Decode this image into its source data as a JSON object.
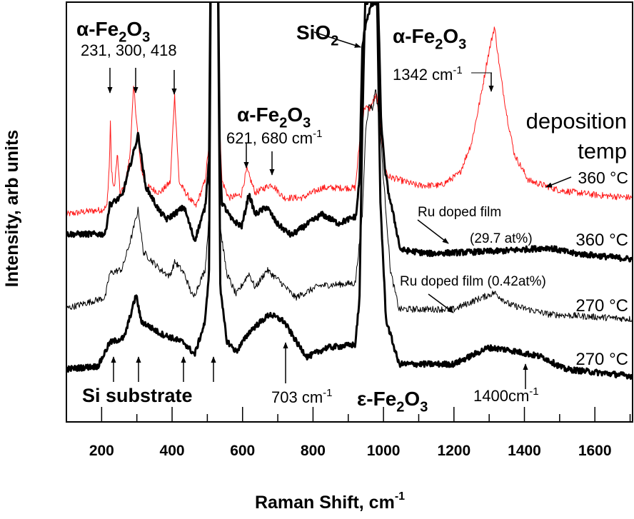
{
  "chart_data": {
    "type": "line",
    "xlabel": "Raman Shift, cm",
    "xlabel_sup": "-1",
    "ylabel": "Intensity, arb units",
    "xlim": [
      100,
      1707
    ],
    "ylim": [
      -1.9,
      99.8
    ],
    "xticks": [
      200,
      400,
      600,
      800,
      1000,
      1200,
      1400,
      1600
    ],
    "xtick_labels": [
      "200",
      "400",
      "600",
      "800",
      "1000",
      "1200",
      "1400",
      "1600"
    ],
    "minor_xticks": [
      300,
      500,
      700,
      900,
      1100,
      1300,
      1500,
      1700
    ],
    "yticks_shown": false,
    "grid": false,
    "series": [
      {
        "name": "360 °C",
        "color": "#ff1a1a",
        "style": "thin",
        "points": [
          [
            100,
            48.4
          ],
          [
            150,
            49.0
          ],
          [
            200,
            49.5
          ],
          [
            215,
            50.2
          ],
          [
            222,
            60.6
          ],
          [
            225,
            71.5
          ],
          [
            228,
            58.8
          ],
          [
            235,
            54.2
          ],
          [
            245,
            63.1
          ],
          [
            252,
            53.6
          ],
          [
            265,
            55.0
          ],
          [
            280,
            62.3
          ],
          [
            291,
            79.6
          ],
          [
            299,
            71.3
          ],
          [
            310,
            60.6
          ],
          [
            324,
            55.4
          ],
          [
            365,
            53.6
          ],
          [
            395,
            56.2
          ],
          [
            407,
            77.5
          ],
          [
            420,
            56.2
          ],
          [
            434,
            54.2
          ],
          [
            467,
            50.2
          ],
          [
            494,
            56.6
          ],
          [
            505,
            65.7
          ],
          [
            512,
            140
          ],
          [
            527,
            140
          ],
          [
            535,
            72
          ],
          [
            541,
            56.6
          ],
          [
            561,
            52.4
          ],
          [
            596,
            53.1
          ],
          [
            612,
            59.3
          ],
          [
            636,
            53.6
          ],
          [
            683,
            55.7
          ],
          [
            717,
            52.4
          ],
          [
            770,
            52.4
          ],
          [
            825,
            54.8
          ],
          [
            920,
            54.8
          ],
          [
            932,
            65.7
          ],
          [
            946,
            74.4
          ],
          [
            960,
            73.9
          ],
          [
            980,
            77.3
          ],
          [
            993,
            68.7
          ],
          [
            1003,
            60.0
          ],
          [
            1013,
            57.6
          ],
          [
            1095,
            55.4
          ],
          [
            1163,
            55.4
          ],
          [
            1216,
            58.3
          ],
          [
            1250,
            65.7
          ],
          [
            1277,
            77.3
          ],
          [
            1295,
            86.0
          ],
          [
            1315,
            93.9
          ],
          [
            1331,
            83.0
          ],
          [
            1352,
            71.5
          ],
          [
            1372,
            62.8
          ],
          [
            1412,
            56.6
          ],
          [
            1500,
            54.2
          ],
          [
            1600,
            53.1
          ],
          [
            1707,
            52.4
          ]
        ]
      },
      {
        "name": "Ru doped film (29.7 at%) 360 °C",
        "color": "#000000",
        "style": "thick",
        "points": [
          [
            100,
            43.6
          ],
          [
            210,
            43.6
          ],
          [
            223,
            50.7
          ],
          [
            258,
            52.8
          ],
          [
            304,
            67.8
          ],
          [
            324,
            55.4
          ],
          [
            365,
            49.0
          ],
          [
            385,
            47.2
          ],
          [
            434,
            50.2
          ],
          [
            464,
            42.0
          ],
          [
            494,
            50.2
          ],
          [
            505,
            62
          ],
          [
            512,
            140
          ],
          [
            527,
            140
          ],
          [
            535,
            65
          ],
          [
            541,
            51.4
          ],
          [
            568,
            47.2
          ],
          [
            598,
            45.5
          ],
          [
            618,
            53.3
          ],
          [
            636,
            48.4
          ],
          [
            669,
            50.2
          ],
          [
            697,
            46.2
          ],
          [
            738,
            43.3
          ],
          [
            825,
            48.4
          ],
          [
            872,
            46.2
          ],
          [
            922,
            47.9
          ],
          [
            932,
            57.1
          ],
          [
            940,
            88.8
          ],
          [
            950,
            95
          ],
          [
            965,
            99
          ],
          [
            985,
            100
          ],
          [
            993,
            71.5
          ],
          [
            1003,
            60
          ],
          [
            1013,
            54.2
          ],
          [
            1033,
            46.2
          ],
          [
            1048,
            39.8
          ],
          [
            1129,
            38.9
          ],
          [
            1332,
            39.5
          ],
          [
            1470,
            40.3
          ],
          [
            1534,
            39.0
          ],
          [
            1707,
            37.5
          ]
        ]
      },
      {
        "name": "Ru doped film (0.42at%) 270 °C",
        "color": "#000000",
        "style": "thin",
        "points": [
          [
            100,
            25.6
          ],
          [
            210,
            28.2
          ],
          [
            223,
            34.1
          ],
          [
            258,
            35.1
          ],
          [
            284,
            42.7
          ],
          [
            304,
            49.7
          ],
          [
            318,
            39.3
          ],
          [
            365,
            35.1
          ],
          [
            393,
            33.4
          ],
          [
            408,
            36.9
          ],
          [
            434,
            34.1
          ],
          [
            460,
            28.2
          ],
          [
            494,
            35.1
          ],
          [
            505,
            48
          ],
          [
            512,
            140
          ],
          [
            527,
            140
          ],
          [
            537,
            45
          ],
          [
            555,
            34.1
          ],
          [
            582,
            28.9
          ],
          [
            618,
            34.1
          ],
          [
            636,
            30.6
          ],
          [
            669,
            34.9
          ],
          [
            703,
            32.4
          ],
          [
            750,
            28.2
          ],
          [
            818,
            31.1
          ],
          [
            920,
            31.7
          ],
          [
            940,
            48.4
          ],
          [
            950,
            70
          ],
          [
            960,
            75
          ],
          [
            970,
            74
          ],
          [
            977,
            79.1
          ],
          [
            990,
            70
          ],
          [
            1000,
            57
          ],
          [
            1020,
            34.6
          ],
          [
            1044,
            25.4
          ],
          [
            1200,
            25.4
          ],
          [
            1264,
            27.7
          ],
          [
            1315,
            29.4
          ],
          [
            1358,
            26.5
          ],
          [
            1467,
            24.2
          ],
          [
            1707,
            23.0
          ]
        ]
      },
      {
        "name": "270 °C",
        "color": "#000000",
        "style": "thick",
        "points": [
          [
            100,
            10.9
          ],
          [
            190,
            11.6
          ],
          [
            223,
            17.3
          ],
          [
            264,
            18.5
          ],
          [
            298,
            28.9
          ],
          [
            312,
            22.5
          ],
          [
            365,
            19.6
          ],
          [
            434,
            17.3
          ],
          [
            464,
            14.4
          ],
          [
            494,
            22.5
          ],
          [
            505,
            35
          ],
          [
            512,
            140
          ],
          [
            527,
            140
          ],
          [
            537,
            30
          ],
          [
            555,
            17.8
          ],
          [
            582,
            15.1
          ],
          [
            622,
            20.2
          ],
          [
            677,
            24.2
          ],
          [
            717,
            22.5
          ],
          [
            758,
            16.8
          ],
          [
            784,
            13.8
          ],
          [
            839,
            16.1
          ],
          [
            920,
            16.8
          ],
          [
            932,
            28.2
          ],
          [
            940,
            70
          ],
          [
            948,
            100
          ],
          [
            982,
            100
          ],
          [
            991,
            51.9
          ],
          [
            1007,
            23
          ],
          [
            1044,
            12.1
          ],
          [
            1200,
            12.1
          ],
          [
            1297,
            16.1
          ],
          [
            1352,
            15.6
          ],
          [
            1453,
            13.8
          ],
          [
            1514,
            10.9
          ],
          [
            1707,
            9.2
          ]
        ]
      }
    ],
    "annotations": [
      {
        "parts": [
          {
            "t": "α-Fe"
          },
          {
            "t": "2",
            "sub": true
          },
          {
            "t": "O"
          },
          {
            "t": "3",
            "sub": true
          }
        ],
        "bold": true
      },
      {
        "parts": [
          {
            "t": "231, 300, 418"
          }
        ]
      },
      {
        "parts": [
          {
            "t": "SiO"
          },
          {
            "t": "2",
            "sub": true
          }
        ],
        "bold": true
      },
      {
        "parts": [
          {
            "t": "α-Fe"
          },
          {
            "t": "2",
            "sub": true
          },
          {
            "t": "O"
          },
          {
            "t": "3",
            "sub": true
          }
        ],
        "bold": true
      },
      {
        "parts": [
          {
            "t": "621, 680 cm"
          },
          {
            "t": "-1",
            "sup": true
          }
        ]
      },
      {
        "parts": [
          {
            "t": "α-Fe"
          },
          {
            "t": "2",
            "sub": true
          },
          {
            "t": "O"
          },
          {
            "t": "3",
            "sub": true
          }
        ],
        "bold": true
      },
      {
        "parts": [
          {
            "t": "1342 cm"
          },
          {
            "t": "-1",
            "sup": true
          }
        ]
      },
      {
        "parts": [
          {
            "t": "deposition"
          }
        ]
      },
      {
        "parts": [
          {
            "t": "temp"
          }
        ]
      },
      {
        "parts": [
          {
            "t": "360 °C"
          }
        ]
      },
      {
        "parts": [
          {
            "t": "Ru doped film"
          }
        ]
      },
      {
        "parts": [
          {
            "t": "(29.7 at%)"
          }
        ]
      },
      {
        "parts": [
          {
            "t": "360 °C"
          }
        ]
      },
      {
        "parts": [
          {
            "t": "Ru doped film (0.42at%)"
          }
        ]
      },
      {
        "parts": [
          {
            "t": "270 °C"
          }
        ]
      },
      {
        "parts": [
          {
            "t": "270 °C"
          }
        ]
      },
      {
        "parts": [
          {
            "t": "Si substrate"
          }
        ],
        "bold": true
      },
      {
        "parts": [
          {
            "t": "703 cm"
          },
          {
            "t": "-1",
            "sup": true
          }
        ]
      },
      {
        "parts": [
          {
            "t": "ε-Fe"
          },
          {
            "t": "2",
            "sub": true
          },
          {
            "t": "O"
          },
          {
            "t": "3",
            "sub": true
          }
        ],
        "bold": true
      },
      {
        "parts": [
          {
            "t": "1400cm"
          },
          {
            "t": "-1",
            "sup": true
          }
        ]
      }
    ]
  }
}
